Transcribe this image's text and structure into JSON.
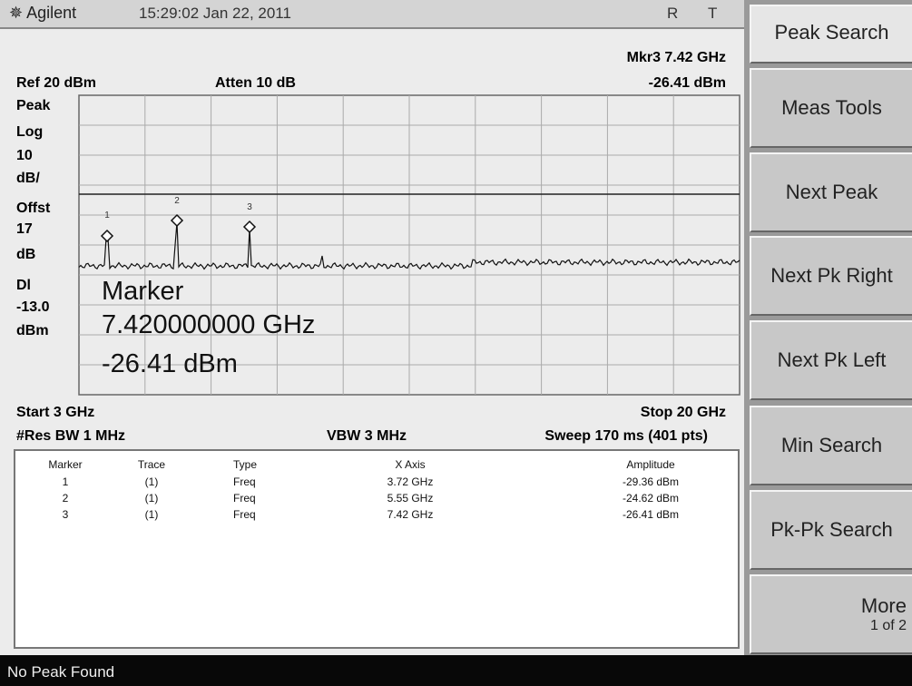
{
  "header": {
    "brand": "Agilent",
    "datetime": "15:29:02 Jan 22, 2011",
    "indicators": [
      "R",
      "T"
    ]
  },
  "readout": {
    "marker": "Mkr3 7.42 GHz",
    "ref": "Ref 20 dBm",
    "atten": "Atten 10 dB",
    "amplitude": "-26.41 dBm"
  },
  "scale_labels": [
    "Peak",
    "Log",
    "10",
    "dB/",
    "Offst",
    "17",
    "dB",
    "Dl",
    "-13.0",
    "dBm"
  ],
  "marker_overlay": [
    "Marker",
    "7.420000000 GHz",
    "-26.41 dBm"
  ],
  "marker_tags": [
    "1",
    "2",
    "3"
  ],
  "footer": {
    "start": "Start 3 GHz",
    "stop": "Stop 20 GHz",
    "rbw": "#Res BW 1 MHz",
    "vbw": "VBW 3 MHz",
    "sweep": "Sweep 170 ms (401 pts)"
  },
  "table": {
    "columns": [
      "Marker",
      "Trace",
      "Type",
      "X Axis",
      "Amplitude"
    ],
    "rows": [
      [
        "1",
        "(1)",
        "Freq",
        "3.72 GHz",
        "-29.36 dBm"
      ],
      [
        "2",
        "(1)",
        "Freq",
        "5.55 GHz",
        "-24.62 dBm"
      ],
      [
        "3",
        "(1)",
        "Freq",
        "7.42 GHz",
        "-26.41 dBm"
      ]
    ]
  },
  "softkeys": [
    {
      "label": "Peak Search"
    },
    {
      "label": "Meas Tools"
    },
    {
      "label": "Next Peak"
    },
    {
      "label": "Next Pk Right"
    },
    {
      "label": "Next Pk Left"
    },
    {
      "label": "Min Search"
    },
    {
      "label": "Pk-Pk Search"
    },
    {
      "label": "More",
      "sub": "1 of 2"
    }
  ],
  "status": "No Peak Found"
}
